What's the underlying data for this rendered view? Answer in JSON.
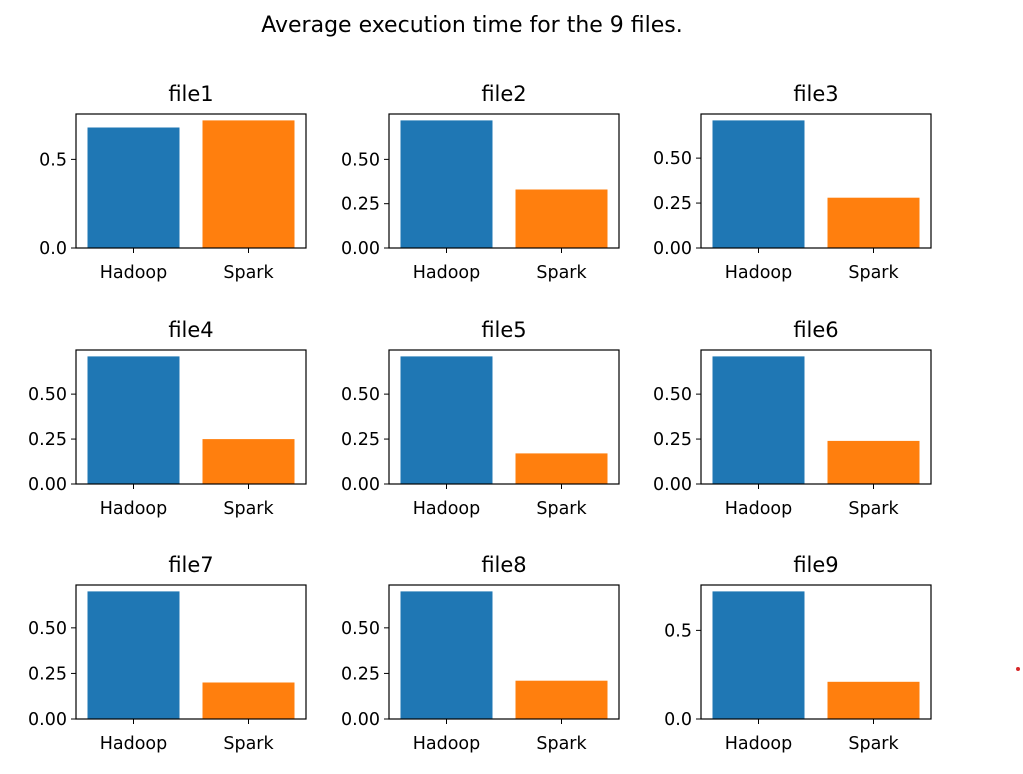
{
  "figure": {
    "title": "Average execution time for the 9 files."
  },
  "chart_data": [
    {
      "type": "bar",
      "title": "file1",
      "categories": [
        "Hadoop",
        "Spark"
      ],
      "values": [
        0.68,
        0.72
      ],
      "colors": [
        "#1f77b4",
        "#ff7f0e"
      ],
      "ylim": [
        0,
        0.756
      ],
      "yticks": [
        "0.0",
        "0.5"
      ]
    },
    {
      "type": "bar",
      "title": "file2",
      "categories": [
        "Hadoop",
        "Spark"
      ],
      "values": [
        0.72,
        0.33
      ],
      "colors": [
        "#1f77b4",
        "#ff7f0e"
      ],
      "ylim": [
        0,
        0.756
      ],
      "yticks": [
        "0.00",
        "0.25",
        "0.50"
      ]
    },
    {
      "type": "bar",
      "title": "file3",
      "categories": [
        "Hadoop",
        "Spark"
      ],
      "values": [
        0.71,
        0.28
      ],
      "colors": [
        "#1f77b4",
        "#ff7f0e"
      ],
      "ylim": [
        0,
        0.7455
      ],
      "yticks": [
        "0.00",
        "0.25",
        "0.50"
      ]
    },
    {
      "type": "bar",
      "title": "file4",
      "categories": [
        "Hadoop",
        "Spark"
      ],
      "values": [
        0.71,
        0.25
      ],
      "colors": [
        "#1f77b4",
        "#ff7f0e"
      ],
      "ylim": [
        0,
        0.7455
      ],
      "yticks": [
        "0.00",
        "0.25",
        "0.50"
      ]
    },
    {
      "type": "bar",
      "title": "file5",
      "categories": [
        "Hadoop",
        "Spark"
      ],
      "values": [
        0.71,
        0.17
      ],
      "colors": [
        "#1f77b4",
        "#ff7f0e"
      ],
      "ylim": [
        0,
        0.7455
      ],
      "yticks": [
        "0.00",
        "0.25",
        "0.50"
      ]
    },
    {
      "type": "bar",
      "title": "file6",
      "categories": [
        "Hadoop",
        "Spark"
      ],
      "values": [
        0.71,
        0.24
      ],
      "colors": [
        "#1f77b4",
        "#ff7f0e"
      ],
      "ylim": [
        0,
        0.7455
      ],
      "yticks": [
        "0.00",
        "0.25",
        "0.50"
      ]
    },
    {
      "type": "bar",
      "title": "file7",
      "categories": [
        "Hadoop",
        "Spark"
      ],
      "values": [
        0.7,
        0.2
      ],
      "colors": [
        "#1f77b4",
        "#ff7f0e"
      ],
      "ylim": [
        0,
        0.735
      ],
      "yticks": [
        "0.00",
        "0.25",
        "0.50"
      ]
    },
    {
      "type": "bar",
      "title": "file8",
      "categories": [
        "Hadoop",
        "Spark"
      ],
      "values": [
        0.7,
        0.21
      ],
      "colors": [
        "#1f77b4",
        "#ff7f0e"
      ],
      "ylim": [
        0,
        0.735
      ],
      "yticks": [
        "0.00",
        "0.25",
        "0.50"
      ]
    },
    {
      "type": "bar",
      "title": "file9",
      "categories": [
        "Hadoop",
        "Spark"
      ],
      "values": [
        0.72,
        0.21
      ],
      "colors": [
        "#1f77b4",
        "#ff7f0e"
      ],
      "ylim": [
        0,
        0.756
      ],
      "yticks": [
        "0.0",
        "0.5"
      ]
    }
  ]
}
